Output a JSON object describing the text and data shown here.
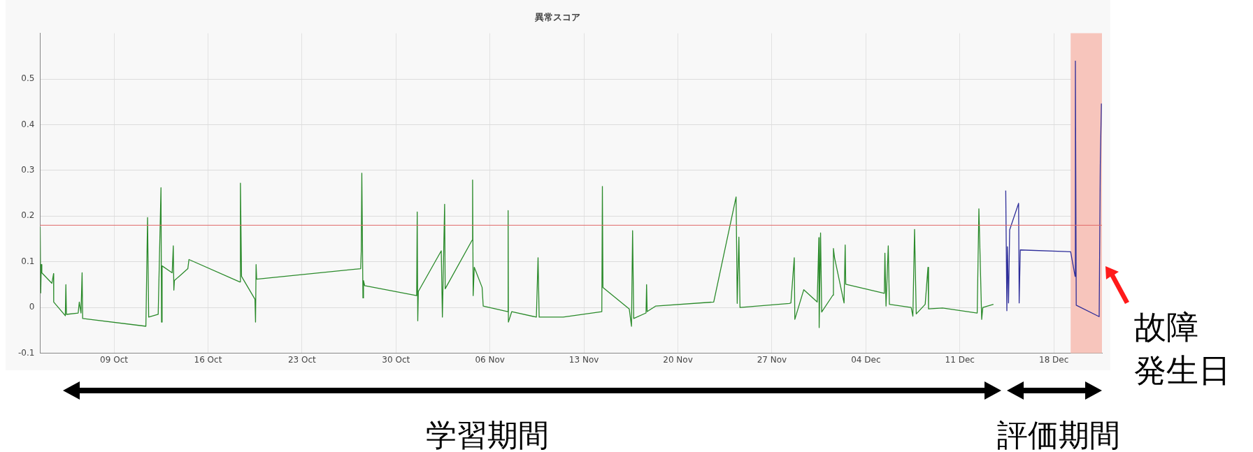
{
  "chart_data": {
    "type": "line",
    "title": "異常スコア",
    "marker": "none",
    "grid": true,
    "legend": false,
    "xlim": [
      "--10-03T12:00",
      "--12-21T14:00"
    ],
    "xticks": [
      {
        "value": "--10-09",
        "label": "09 Oct"
      },
      {
        "value": "--10-16",
        "label": "16 Oct"
      },
      {
        "value": "--10-23",
        "label": "23 Oct"
      },
      {
        "value": "--10-30",
        "label": "30 Oct"
      },
      {
        "value": "--11-06",
        "label": "06 Nov"
      },
      {
        "value": "--11-13",
        "label": "13 Nov"
      },
      {
        "value": "--11-20",
        "label": "20 Nov"
      },
      {
        "value": "--11-27",
        "label": "27 Nov"
      },
      {
        "value": "--12-04",
        "label": "04 Dec"
      },
      {
        "value": "--12-11",
        "label": "11 Dec"
      },
      {
        "value": "--12-18",
        "label": "18 Dec"
      }
    ],
    "ylim": [
      -0.1,
      0.6
    ],
    "yticks": [
      -0.1,
      0,
      0.1,
      0.2,
      0.3,
      0.4,
      0.5
    ],
    "series": [
      {
        "color": "#2a8a2a",
        "x": [
          "--10-03T12:00",
          "--10-03T13:00",
          "--10-03T14:00",
          "--10-03T15:00",
          "--10-04T09:00",
          "--10-04T12:00",
          "--10-04T12:15",
          "--10-05T09:00",
          "--10-05T10:00",
          "--10-05T11:00",
          "--10-06T08:00",
          "--10-06T10:00",
          "--10-06T13:00",
          "--10-06T15:00",
          "--10-06T16:00",
          "--10-11T09:00",
          "--10-11T12:00",
          "--10-11T14:00",
          "--10-12T07:00",
          "--10-12T12:00",
          "--10-12T13:00",
          "--10-12T14:00",
          "--10-13T08:00",
          "--10-13T10:00",
          "--10-13T11:00",
          "--10-13T12:00",
          "--10-14T12:00",
          "--10-14T14:00",
          "--10-18T09:00",
          "--10-18T10:00",
          "--10-18T12:00",
          "--10-19T12:00",
          "--10-19T13:00",
          "--10-19T14:00",
          "--10-19T15:00",
          "--10-27T09:00",
          "--10-27T10:00",
          "--10-27T11:00",
          "--10-27T13:00",
          "--10-27T14:00",
          "--10-27T16:00",
          "--10-31T13:00",
          "--10-31T14:00",
          "--10-31T15:00",
          "--10-31T16:00",
          "--11-02T09:00",
          "--11-02T11:00",
          "--11-02T15:00",
          "--11-02T16:00",
          "--11-04T16:00",
          "--11-04T17:00",
          "--11-04T18:00",
          "--11-04T20:00",
          "--11-05T10:00",
          "--11-05T12:00",
          "--11-07T08:00",
          "--11-07T08:30",
          "--11-07T09:00",
          "--11-07T15:00",
          "--11-09T11:00",
          "--11-09T14:00",
          "--11-09T16:00",
          "--11-11T11:00",
          "--11-14T08:00",
          "--11-14T09:00",
          "--11-14T10:00",
          "--11-16T09:00",
          "--11-16T13:00",
          "--11-16T15:00",
          "--11-16T17:00",
          "--11-17T15:00",
          "--11-17T16:00",
          "--11-17T17:00",
          "--11-18T08:00",
          "--11-22T16:00",
          "--11-24T08:00",
          "--11-24T10:00",
          "--11-24T13:00",
          "--11-24T15:00",
          "--11-28T07:00",
          "--11-28T10:00",
          "--11-28T16:00",
          "--11-28T17:00",
          "--11-29T09:00",
          "--11-30T09:00",
          "--11-30T12:00",
          "--11-30T12:30",
          "--11-30T15:00",
          "--11-30T17:00",
          "--12-01T13:00",
          "--12-01T14:00",
          "--12-01T16:00",
          "--12-02T09:00",
          "--12-02T11:00",
          "--12-02T12:00",
          "--12-05T09:00",
          "--12-05T10:00",
          "--12-05T12:00",
          "--12-05T16:00",
          "--12-05T18:00",
          "--12-07T09:00",
          "--12-07T12:00",
          "--12-07T15:00",
          "--12-07T18:00",
          "--12-08T10:00",
          "--12-08T15:00",
          "--12-08T16:00",
          "--12-09T17:00",
          "--12-12T07:00",
          "--12-12T10:00",
          "--12-12T15:00",
          "--12-12T17:00",
          "--12-13T12:00"
        ],
        "values": [
          0.176,
          0.032,
          0.094,
          0.076,
          0.053,
          0.074,
          0.012,
          -0.018,
          0.05,
          -0.015,
          -0.012,
          0.012,
          -0.012,
          0.076,
          -0.024,
          -0.041,
          0.197,
          -0.021,
          -0.015,
          0.262,
          -0.032,
          0.091,
          0.076,
          0.135,
          0.038,
          0.059,
          0.085,
          0.105,
          0.056,
          0.272,
          0.068,
          0.018,
          -0.032,
          0.094,
          0.062,
          0.085,
          0.124,
          0.294,
          0.021,
          0.059,
          0.048,
          0.026,
          0.209,
          -0.029,
          0.035,
          0.124,
          -0.021,
          0.226,
          0.041,
          0.147,
          0.279,
          0.026,
          0.088,
          0.044,
          0.003,
          -0.009,
          0.212,
          -0.032,
          -0.009,
          -0.021,
          0.109,
          -0.021,
          -0.021,
          -0.009,
          0.265,
          0.044,
          -0.003,
          -0.041,
          0.168,
          -0.024,
          -0.012,
          0.05,
          -0.009,
          0.003,
          0.012,
          0.242,
          0.009,
          0.154,
          0,
          0.009,
          0.01,
          0.109,
          -0.026,
          0.039,
          0.012,
          0.153,
          -0.044,
          0.163,
          -0.01,
          0.027,
          0.129,
          0.109,
          0.01,
          0.137,
          0.051,
          0.031,
          0.119,
          0.003,
          0.135,
          0.007,
          0,
          -0.019,
          0.171,
          -0.014,
          0.007,
          0.088,
          -0.003,
          -0.001,
          -0.012,
          0.216,
          -0.026,
          0,
          0.007
        ]
      },
      {
        "color": "#2e2e9a",
        "x": [
          "--12-14T10:00",
          "--12-14T12:00",
          "--12-14T13:00",
          "--12-14T15:00",
          "--12-14T17:00",
          "--12-15T09:00",
          "--12-15T10:00",
          "--12-15T12:00",
          "--12-19T06:00",
          "--12-19T14:00",
          "--12-19T14:30",
          "--12-19T16:00",
          "--12-21T09:00",
          "--12-21T11:00",
          "--12-21T13:00"
        ],
        "values": [
          0.256,
          -0.007,
          0.133,
          0.01,
          0.17,
          0.228,
          0.01,
          0.126,
          0.122,
          0.068,
          0.539,
          0.005,
          -0.02,
          0.312,
          0.446
        ]
      }
    ],
    "ref_lines": [
      {
        "axis": "y",
        "value": 0.18,
        "color": "#e06a6a"
      }
    ],
    "bands": [
      {
        "axis": "x",
        "from": "--12-19T06:00",
        "to": "--12-21T14:00",
        "color": "#f7c5bc"
      }
    ],
    "annotations": [
      "学習期間",
      "評価期間",
      "故障",
      "発生日"
    ]
  }
}
